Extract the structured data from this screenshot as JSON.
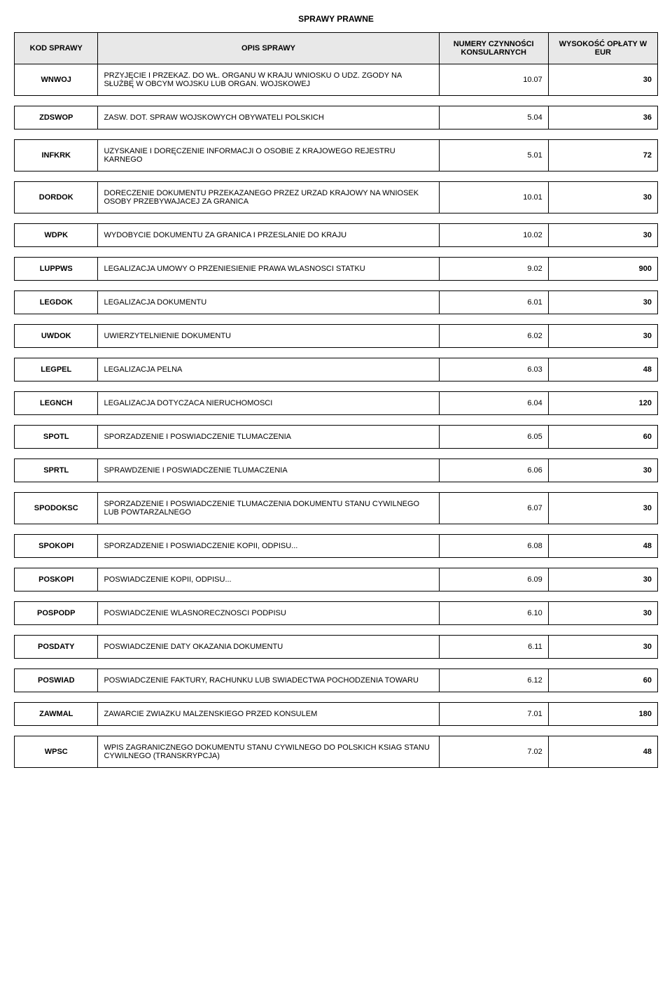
{
  "title": "SPRAWY PRAWNE",
  "columns": {
    "code": "KOD SPRAWY",
    "desc": "OPIS SPRAWY",
    "num": "NUMERY CZYNNOŚCI KONSULARNYCH",
    "fee": "WYSOKOŚĆ OPŁATY W EUR"
  },
  "rows": [
    {
      "code": "WNWOJ",
      "desc": "PRZYJĘCIE I PRZEKAZ. DO WŁ. ORGANU W KRAJU WNIOSKU O UDZ. ZGODY NA SŁUŻBĘ W OBCYM WOJSKU LUB ORGAN. WOJSKOWEJ",
      "num": "10.07",
      "fee": "30"
    },
    {
      "code": "ZDSWOP",
      "desc": "ZASW. DOT. SPRAW WOJSKOWYCH OBYWATELI POLSKICH",
      "num": "5.04",
      "fee": "36"
    },
    {
      "code": "INFKRK",
      "desc": "UZYSKANIE I DORĘCZENIE INFORMACJI O OSOBIE Z KRAJOWEGO REJESTRU KARNEGO",
      "num": "5.01",
      "fee": "72"
    },
    {
      "code": "DORDOK",
      "desc": "DORECZENIE DOKUMENTU PRZEKAZANEGO PRZEZ URZAD KRAJOWY NA WNIOSEK OSOBY PRZEBYWAJACEJ ZA GRANICA",
      "num": "10.01",
      "fee": "30"
    },
    {
      "code": "WDPK",
      "desc": "WYDOBYCIE DOKUMENTU ZA GRANICA I PRZESLANIE DO KRAJU",
      "num": "10.02",
      "fee": "30"
    },
    {
      "code": "LUPPWS",
      "desc": "LEGALIZACJA UMOWY O PRZENIESIENIE PRAWA WLASNOSCI STATKU",
      "num": "9.02",
      "fee": "900"
    },
    {
      "code": "LEGDOK",
      "desc": "LEGALIZACJA DOKUMENTU",
      "num": "6.01",
      "fee": "30"
    },
    {
      "code": "UWDOK",
      "desc": "UWIERZYTELNIENIE DOKUMENTU",
      "num": "6.02",
      "fee": "30"
    },
    {
      "code": "LEGPEL",
      "desc": "LEGALIZACJA PELNA",
      "num": "6.03",
      "fee": "48"
    },
    {
      "code": "LEGNCH",
      "desc": "LEGALIZACJA DOTYCZACA NIERUCHOMOSCI",
      "num": "6.04",
      "fee": "120"
    },
    {
      "code": "SPOTL",
      "desc": "SPORZADZENIE I POSWIADCZENIE TLUMACZENIA",
      "num": "6.05",
      "fee": "60"
    },
    {
      "code": "SPRTL",
      "desc": "SPRAWDZENIE I POSWIADCZENIE TLUMACZENIA",
      "num": "6.06",
      "fee": "30"
    },
    {
      "code": "SPODOKSC",
      "desc": "SPORZADZENIE I POSWIADCZENIE TLUMACZENIA DOKUMENTU STANU CYWILNEGO LUB POWTARZALNEGO",
      "num": "6.07",
      "fee": "30"
    },
    {
      "code": "SPOKOPI",
      "desc": "SPORZADZENIE I POSWIADCZENIE KOPII, ODPISU...",
      "num": "6.08",
      "fee": "48"
    },
    {
      "code": "POSKOPI",
      "desc": "POSWIADCZENIE KOPII, ODPISU...",
      "num": "6.09",
      "fee": "30"
    },
    {
      "code": "POSPODP",
      "desc": "POSWIADCZENIE WLASNORECZNOSCI PODPISU",
      "num": "6.10",
      "fee": "30"
    },
    {
      "code": "POSDATY",
      "desc": "POSWIADCZENIE DATY OKAZANIA DOKUMENTU",
      "num": "6.11",
      "fee": "30"
    },
    {
      "code": "POSWIAD",
      "desc": "POSWIADCZENIE FAKTURY, RACHUNKU LUB SWIADECTWA POCHODZENIA TOWARU",
      "num": "6.12",
      "fee": "60"
    },
    {
      "code": "ZAWMAL",
      "desc": "ZAWARCIE ZWIAZKU MALZENSKIEGO PRZED KONSULEM",
      "num": "7.01",
      "fee": "180"
    },
    {
      "code": "WPSC",
      "desc": "WPIS ZAGRANICZNEGO DOKUMENTU STANU CYWILNEGO DO POLSKICH KSIAG STANU CYWILNEGO (TRANSKRYPCJA)",
      "num": "7.02",
      "fee": "48"
    }
  ]
}
